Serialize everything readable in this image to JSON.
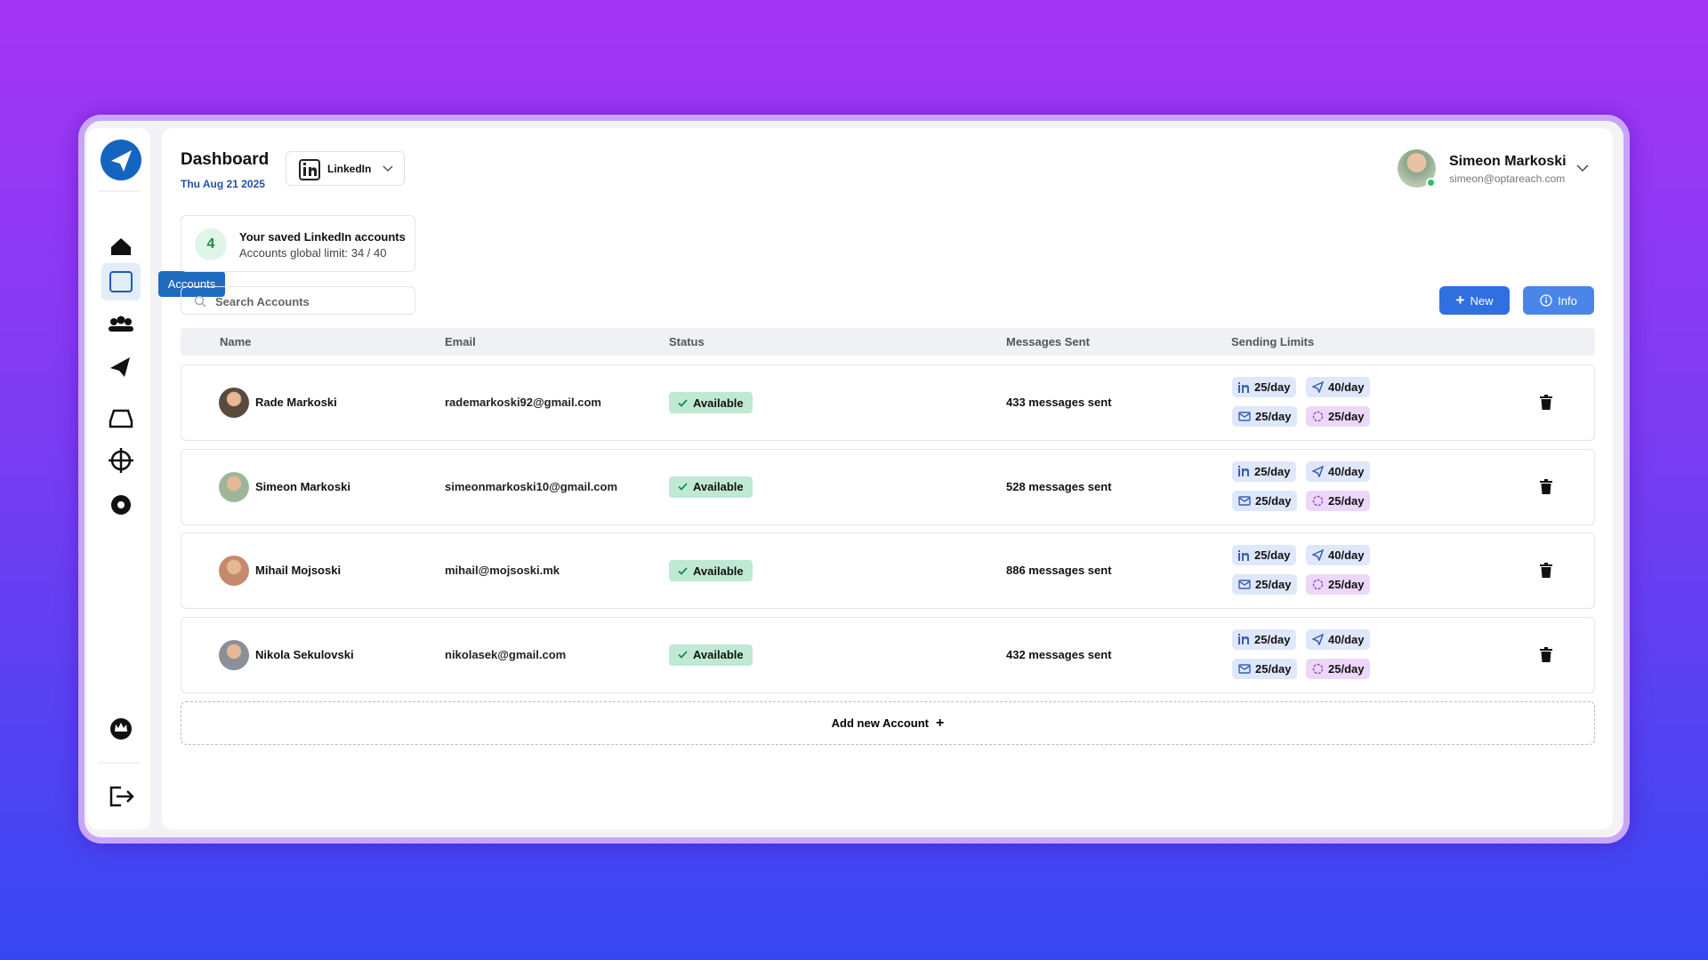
{
  "header": {
    "title": "Dashboard",
    "date": "Thu Aug 21 2025",
    "platform": "LinkedIn",
    "user_name": "Simeon Markoski",
    "user_email": "simeon@optareach.com"
  },
  "summary": {
    "count": "4",
    "title": "Your saved LinkedIn accounts",
    "limit": "Accounts global limit: 34 / 40"
  },
  "tooltip": "Accounts",
  "search_placeholder": "Search Accounts",
  "buttons": {
    "new": "New",
    "info": "Info"
  },
  "table": {
    "headers": [
      "Name",
      "Email",
      "Status",
      "Messages Sent",
      "Sending Limits"
    ],
    "rows": [
      {
        "name": "Rade Markoski",
        "email": "rademarkoski92@gmail.com",
        "status": "Available",
        "messages": "433 messages sent",
        "limits": [
          "25/day",
          "40/day",
          "25/day",
          "25/day"
        ]
      },
      {
        "name": "Simeon Markoski",
        "email": "simeonmarkoski10@gmail.com",
        "status": "Available",
        "messages": "528 messages sent",
        "limits": [
          "25/day",
          "40/day",
          "25/day",
          "25/day"
        ]
      },
      {
        "name": "Mihail Mojsoski",
        "email": "mihail@mojsoski.mk",
        "status": "Available",
        "messages": "886 messages sent",
        "limits": [
          "25/day",
          "40/day",
          "25/day",
          "25/day"
        ]
      },
      {
        "name": "Nikola Sekulovski",
        "email": "nikolasek@gmail.com",
        "status": "Available",
        "messages": "432 messages sent",
        "limits": [
          "25/day",
          "40/day",
          "25/day",
          "25/day"
        ]
      }
    ]
  },
  "add_account": "Add new Account"
}
